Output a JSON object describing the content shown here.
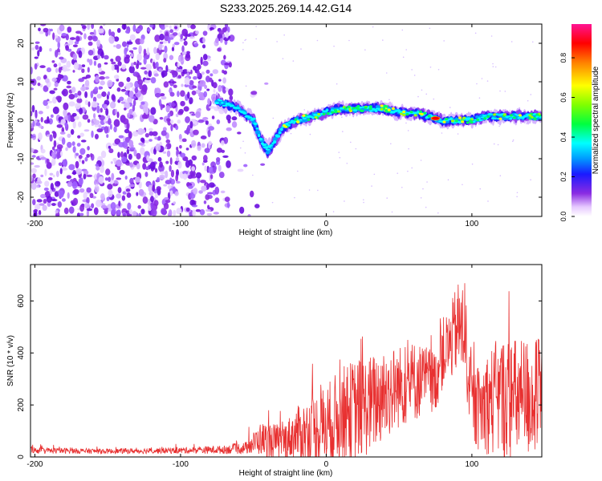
{
  "figure": {
    "title": "S233.2025.269.14.42.G14"
  },
  "chart_data": [
    {
      "type": "heatmap",
      "name": "spectrogram",
      "xlabel": "Height of straight line (km)",
      "ylabel": "Frequency (Hz)",
      "xlim": [
        -203,
        148
      ],
      "ylim": [
        -25,
        25
      ],
      "x_ticks": [
        -200,
        -100,
        0,
        100
      ],
      "x_tick_labels": [
        "-200",
        "-100",
        "0",
        "100"
      ],
      "y_ticks": [
        -20,
        -10,
        0,
        10,
        20
      ],
      "y_tick_labels": [
        "-20",
        "-10",
        "0",
        "10",
        "20"
      ],
      "colorbar": {
        "label": "Normalized spectral amplitude",
        "range": [
          0,
          0.97
        ],
        "ticks": [
          0.0,
          0.2,
          0.4,
          0.6,
          0.8
        ],
        "tick_labels": [
          "0.0",
          "0.2",
          "0.4",
          "0.6",
          "0.8"
        ],
        "colors": [
          "#ffffff",
          "#cc55ff",
          "#7b1fe0",
          "#2020ff",
          "#00a0ff",
          "#00ffff",
          "#00ff40",
          "#a0ff00",
          "#ffff00",
          "#ff8000",
          "#ff0000",
          "#ff2090"
        ]
      },
      "ridge": {
        "description_points_x": [
          -75,
          -60,
          -50,
          -45,
          -40,
          -30,
          -20,
          -10,
          0,
          10,
          20,
          30,
          40,
          50,
          60,
          70,
          80,
          90,
          100,
          110,
          120,
          130,
          140,
          148
        ],
        "description_points_freq": [
          5,
          3,
          0,
          -5,
          -8,
          -2,
          0,
          1,
          2,
          3,
          3,
          3,
          3,
          2,
          2,
          1,
          0,
          0,
          0,
          1,
          1,
          1,
          1,
          1
        ],
        "peak_amplitude_near_x": 75
      },
      "noise_region_x": [
        -203,
        -65
      ]
    },
    {
      "type": "line",
      "name": "snr",
      "xlabel": "Height of straight line (km)",
      "ylabel": "SNR (10 * v/v)",
      "xlim": [
        -203,
        148
      ],
      "ylim": [
        0,
        740
      ],
      "x_ticks": [
        -200,
        -100,
        0,
        100
      ],
      "x_tick_labels": [
        "-200",
        "-100",
        "0",
        "100"
      ],
      "y_ticks": [
        0,
        200,
        400,
        600
      ],
      "y_tick_labels": [
        "0",
        "200",
        "400",
        "600"
      ],
      "color": "#e83030",
      "envelope": {
        "x": [
          -203,
          -150,
          -100,
          -70,
          -55,
          -45,
          -38,
          -30,
          -20,
          -10,
          0,
          10,
          20,
          30,
          40,
          50,
          60,
          70,
          75,
          80,
          85,
          90,
          95,
          100,
          105,
          110,
          120,
          130,
          140,
          148
        ],
        "baseline": [
          25,
          22,
          25,
          28,
          35,
          70,
          60,
          60,
          90,
          100,
          120,
          160,
          180,
          200,
          240,
          270,
          290,
          300,
          290,
          400,
          430,
          500,
          480,
          200,
          180,
          210,
          230,
          220,
          230,
          220
        ],
        "spread": [
          15,
          12,
          15,
          20,
          30,
          80,
          90,
          80,
          130,
          170,
          200,
          230,
          250,
          240,
          230,
          200,
          200,
          160,
          150,
          170,
          180,
          220,
          250,
          180,
          200,
          250,
          300,
          300,
          300,
          300
        ]
      }
    }
  ]
}
